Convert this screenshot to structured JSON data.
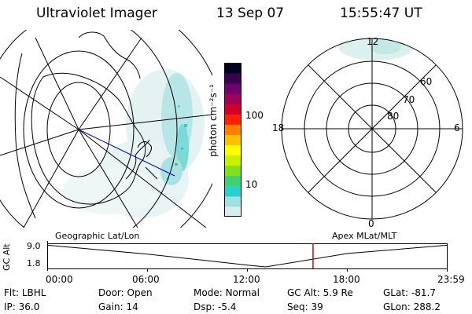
{
  "header": {
    "instrument": "Ultraviolet Imager",
    "date": "13 Sep 07",
    "time": "15:55:47 UT"
  },
  "colorbar": {
    "unit_label": "photon cm⁻²s⁻¹",
    "ticks": [
      "100",
      "10"
    ],
    "stops": [
      "#d7eef0",
      "#9fe0e0",
      "#2ad0d0",
      "#3fd070",
      "#7fe020",
      "#c8f000",
      "#ffff00",
      "#ffc000",
      "#ff8000",
      "#ff2000",
      "#d0002a",
      "#a0005a",
      "#700070",
      "#3a0050",
      "#000020"
    ]
  },
  "polar_plot": {
    "mlt_labels": {
      "top": "12",
      "left": "18",
      "right": "6",
      "bottom": "0"
    },
    "lat_labels": [
      "60",
      "70",
      "80"
    ]
  },
  "timeline": {
    "left_title": "Geographic Lat/Lon",
    "right_title": "Apex MLat/MLT",
    "y_label": "GC Alt",
    "y_ticks": [
      "9.0",
      "1.8"
    ],
    "x_ticks": [
      "00:00",
      "06:00",
      "12:00",
      "18:00",
      "23:59"
    ],
    "marker_time": "15:55:47"
  },
  "chart_data": {
    "type": "line",
    "title": "",
    "xlabel": "",
    "ylabel": "GC Alt",
    "ylim": [
      1.8,
      9.0
    ],
    "x": [
      "00:00",
      "06:00",
      "12:00",
      "13:05",
      "18:00",
      "23:59"
    ],
    "series": [
      {
        "values": [
          8.9,
          6.0,
          2.4,
          1.8,
          6.2,
          8.9
        ]
      }
    ]
  },
  "status": {
    "row1": [
      {
        "key": "Flt:",
        "val": "LBHL"
      },
      {
        "key": "Door:",
        "val": "Open"
      },
      {
        "key": "Mode:",
        "val": "Normal"
      },
      {
        "key": "GC Alt:",
        "val": "5.9 Re"
      },
      {
        "key": "GLat:",
        "val": "-81.7"
      }
    ],
    "row2": [
      {
        "key": "IP:",
        "val": "36.0"
      },
      {
        "key": "Gain:",
        "val": "14"
      },
      {
        "key": "Dsp:",
        "val": "-5.4"
      },
      {
        "key": "Seq:",
        "val": "39"
      },
      {
        "key": "GLon:",
        "val": "288.2"
      }
    ]
  }
}
